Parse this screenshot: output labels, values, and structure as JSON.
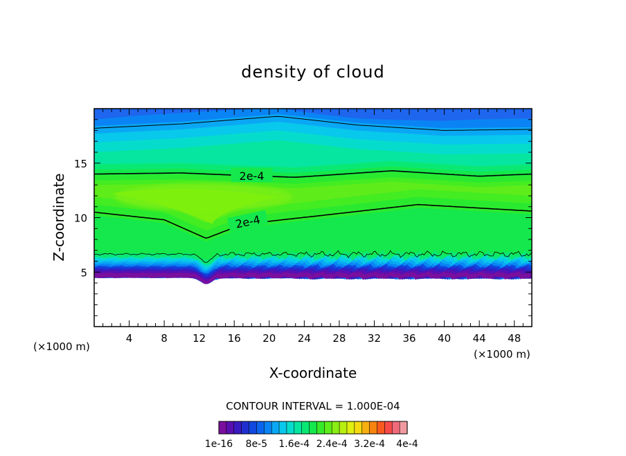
{
  "chart_data": {
    "type": "heatmap",
    "title": "density of cloud",
    "xlabel": "X-coordinate",
    "ylabel": "Z-coordinate",
    "x_unit": "(×1000 m)",
    "z_unit": "(×1000 m)",
    "xlim": [
      0,
      50
    ],
    "ylim": [
      0,
      20
    ],
    "x_ticks": [
      4,
      8,
      12,
      16,
      20,
      24,
      28,
      32,
      36,
      40,
      44,
      48
    ],
    "y_ticks": [
      5,
      10,
      15
    ],
    "contour_interval_text": "CONTOUR INTERVAL = 1.000E-04",
    "contour_labels": [
      "2e-4",
      "2e-4"
    ],
    "cloud_base_km": 5.0,
    "upper_contour_z": [
      [
        0,
        18.2
      ],
      [
        10,
        18.6
      ],
      [
        21,
        19.3
      ],
      [
        30,
        18.5
      ],
      [
        40,
        18.0
      ],
      [
        50,
        18.1
      ]
    ],
    "contour_2e4_upper_z": [
      [
        0,
        14.0
      ],
      [
        10,
        14.1
      ],
      [
        16,
        13.9
      ],
      [
        23,
        13.7
      ],
      [
        34,
        14.3
      ],
      [
        44,
        13.8
      ],
      [
        50,
        14.0
      ]
    ],
    "contour_2e4_lower_z": [
      [
        0,
        10.5
      ],
      [
        8,
        9.8
      ],
      [
        12.8,
        8.1
      ],
      [
        17,
        9.4
      ],
      [
        26,
        10.2
      ],
      [
        37,
        11.2
      ],
      [
        50,
        10.6
      ]
    ],
    "colorbar": {
      "tick_labels": [
        "1e-16",
        "8e-5",
        "1.6e-4",
        "2.4e-4",
        "3.2e-4",
        "4e-4"
      ],
      "colors": [
        "#7a0f9e",
        "#5a0fb0",
        "#3a1ac0",
        "#2030d0",
        "#1048e0",
        "#0a64ee",
        "#0a84f4",
        "#0aa8f4",
        "#08c8ec",
        "#06dccc",
        "#06e6a0",
        "#0ae874",
        "#14e84c",
        "#36ea2a",
        "#5eec1a",
        "#8aee14",
        "#b8ee10",
        "#e0ee10",
        "#f6da10",
        "#f8b010",
        "#f88410",
        "#f85a20",
        "#f64a48",
        "#f06a7a",
        "#f09aa0"
      ]
    }
  }
}
